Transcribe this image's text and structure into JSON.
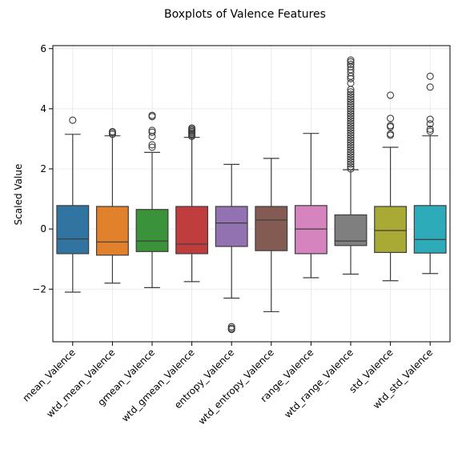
{
  "chart_data": {
    "type": "box",
    "title": "Boxplots of Valence Features",
    "ylabel": "Scaled Value",
    "xlabel": "",
    "ylim": [
      -3.75,
      6.1
    ],
    "yticks": [
      -2,
      0,
      2,
      4,
      6
    ],
    "grid": true,
    "legend": "none",
    "series": [
      {
        "name": "mean_Valence",
        "color": "#3274a1",
        "whisker_low": -2.1,
        "q1": -0.82,
        "median": -0.33,
        "q3": 0.78,
        "whisker_high": 3.15,
        "outliers": [
          3.62
        ]
      },
      {
        "name": "wtd_mean_Valence",
        "color": "#e1812c",
        "whisker_low": -1.8,
        "q1": -0.87,
        "median": -0.43,
        "q3": 0.75,
        "whisker_high": 3.1,
        "outliers": [
          3.15,
          3.2,
          3.24
        ]
      },
      {
        "name": "gmean_Valence",
        "color": "#3a923a",
        "whisker_low": -1.95,
        "q1": -0.75,
        "median": -0.4,
        "q3": 0.65,
        "whisker_high": 2.55,
        "outliers": [
          2.72,
          2.8,
          3.08,
          3.22,
          3.28,
          3.74,
          3.78
        ]
      },
      {
        "name": "wtd_gmean_Valence",
        "color": "#c03d3e",
        "whisker_low": -1.75,
        "q1": -0.82,
        "median": -0.5,
        "q3": 0.75,
        "whisker_high": 3.05,
        "outliers": [
          3.08,
          3.12,
          3.16,
          3.2,
          3.24,
          3.28,
          3.32,
          3.36
        ]
      },
      {
        "name": "entropy_Valence",
        "color": "#9372b2",
        "whisker_low": -2.3,
        "q1": -0.58,
        "median": 0.2,
        "q3": 0.75,
        "whisker_high": 2.15,
        "outliers": [
          -3.25,
          -3.3,
          -3.34
        ]
      },
      {
        "name": "wtd_entropy_Valence",
        "color": "#845b53",
        "whisker_low": -2.75,
        "q1": -0.72,
        "median": 0.3,
        "q3": 0.75,
        "whisker_high": 2.35,
        "outliers": []
      },
      {
        "name": "range_Valence",
        "color": "#d684bd",
        "whisker_low": -1.62,
        "q1": -0.82,
        "median": 0.0,
        "q3": 0.78,
        "whisker_high": 3.18,
        "outliers": []
      },
      {
        "name": "wtd_range_Valence",
        "color": "#7f7f7f",
        "whisker_low": -1.5,
        "q1": -0.55,
        "median": -0.4,
        "q3": 0.47,
        "whisker_high": 1.97,
        "outliers": [
          2.0,
          2.08,
          2.16,
          2.24,
          2.32,
          2.4,
          2.48,
          2.56,
          2.64,
          2.72,
          2.8,
          2.88,
          2.96,
          3.04,
          3.12,
          3.2,
          3.28,
          3.36,
          3.44,
          3.52,
          3.6,
          3.68,
          3.76,
          3.84,
          3.92,
          4.0,
          4.08,
          4.16,
          4.24,
          4.32,
          4.4,
          4.48,
          4.56,
          4.64,
          4.85,
          5.0,
          5.08,
          5.2,
          5.3,
          5.4,
          5.48,
          5.56,
          5.62
        ]
      },
      {
        "name": "std_Valence",
        "color": "#a9aa35",
        "whisker_low": -1.72,
        "q1": -0.78,
        "median": -0.05,
        "q3": 0.75,
        "whisker_high": 2.72,
        "outliers": [
          3.12,
          3.16,
          3.4,
          3.44,
          3.68,
          4.45
        ]
      },
      {
        "name": "wtd_std_Valence",
        "color": "#2eabb8",
        "whisker_low": -1.48,
        "q1": -0.8,
        "median": -0.35,
        "q3": 0.78,
        "whisker_high": 3.1,
        "outliers": [
          3.25,
          3.32,
          3.5,
          3.65,
          4.72,
          5.08
        ]
      }
    ]
  }
}
